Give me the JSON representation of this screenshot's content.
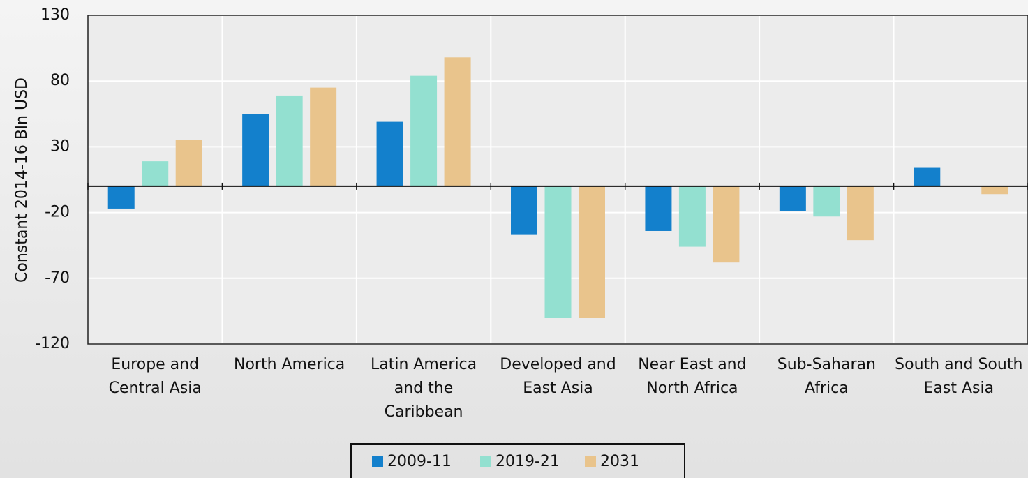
{
  "chart_data": {
    "type": "bar",
    "y_axis_label": "Constant 2014-16 Bln USD",
    "categories": [
      "Europe and Central Asia",
      "North America",
      "Latin America and the Caribbean",
      "Developed and East Asia",
      "Near East and North Africa",
      "Sub-Saharan Africa",
      "South and South East Asia"
    ],
    "series": [
      {
        "name": "2009-11",
        "color": "#1380cc",
        "values": [
          -17,
          55,
          49,
          -37,
          -34,
          -19,
          14
        ]
      },
      {
        "name": "2019-21",
        "color": "#93e0d0",
        "values": [
          19,
          69,
          84,
          -100,
          -46,
          -23,
          0
        ]
      },
      {
        "name": "2031",
        "color": "#e9c48c",
        "values": [
          35,
          75,
          98,
          -100,
          -58,
          -41,
          -6
        ]
      }
    ],
    "ylim": [
      -120,
      130
    ],
    "yticks": [
      -120,
      -70,
      -20,
      30,
      80,
      130
    ],
    "grid": true
  }
}
